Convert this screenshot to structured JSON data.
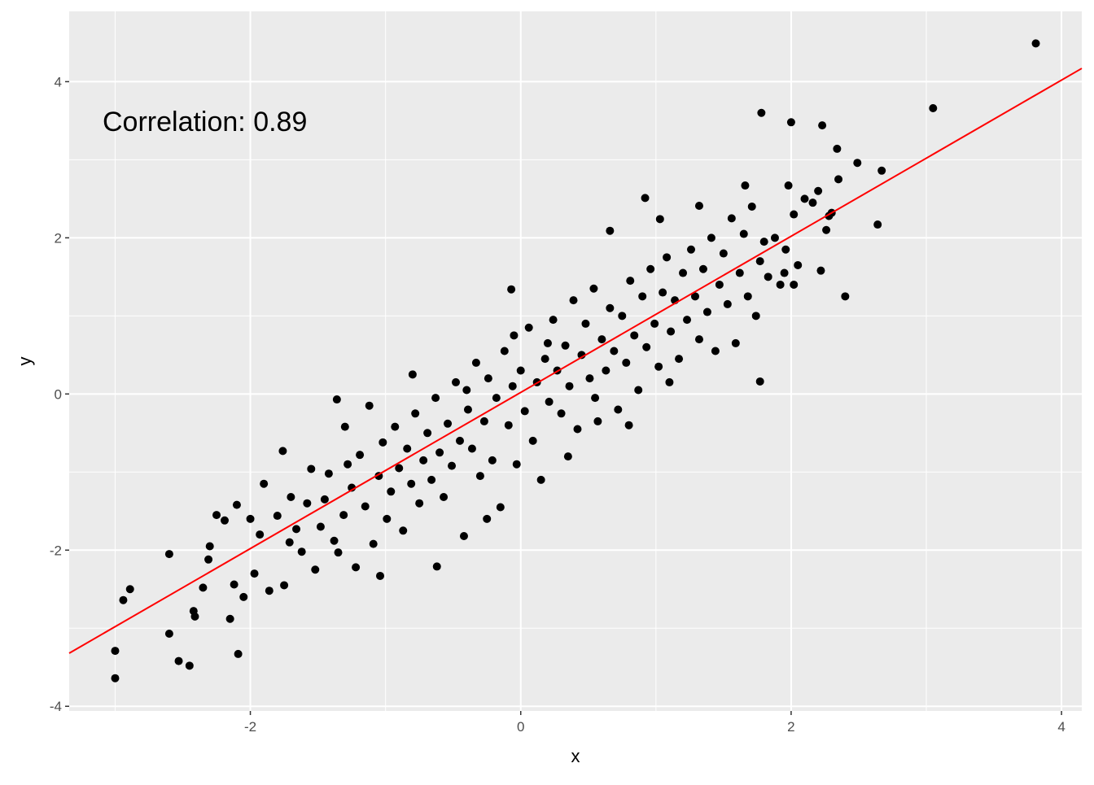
{
  "chart_data": {
    "type": "scatter",
    "title": "",
    "xlabel": "x",
    "ylabel": "y",
    "xlim": [
      -3.34,
      4.15
    ],
    "ylim": [
      -4.06,
      4.9
    ],
    "x_ticks": [
      -2,
      0,
      2,
      4
    ],
    "y_ticks": [
      -4,
      -2,
      0,
      2,
      4
    ],
    "x_tick_labels": [
      "-2",
      "0",
      "2",
      "4"
    ],
    "y_tick_labels": [
      "-4",
      "-2",
      "0",
      "2",
      "4"
    ],
    "grid": true,
    "annotation": "Correlation: 0.89",
    "regression_line": {
      "slope": 1.0,
      "intercept": 0.02,
      "color": "#ff0000"
    },
    "point_color": "#000000",
    "panel_background": "#ebebeb",
    "points": [
      [
        3.81,
        4.49
      ],
      [
        3.05,
        3.66
      ],
      [
        1.78,
        3.6
      ],
      [
        2.0,
        3.48
      ],
      [
        2.23,
        3.44
      ],
      [
        2.34,
        3.14
      ],
      [
        2.49,
        2.96
      ],
      [
        2.67,
        2.86
      ],
      [
        2.64,
        2.17
      ],
      [
        2.4,
        1.25
      ],
      [
        1.77,
        0.16
      ],
      [
        -3.0,
        -3.64
      ],
      [
        -3.0,
        -3.29
      ],
      [
        -2.94,
        -2.64
      ],
      [
        -2.89,
        -2.5
      ],
      [
        -2.6,
        -2.05
      ],
      [
        -2.6,
        -3.07
      ],
      [
        -2.53,
        -3.42
      ],
      [
        -2.45,
        -3.48
      ],
      [
        -2.09,
        -3.33
      ],
      [
        -0.62,
        -2.21
      ],
      [
        -1.04,
        -2.33
      ],
      [
        -1.36,
        -0.07
      ],
      [
        -1.76,
        -0.73
      ],
      [
        -0.07,
        1.34
      ],
      [
        0.66,
        2.09
      ],
      [
        0.92,
        2.51
      ],
      [
        1.03,
        2.24
      ],
      [
        1.32,
        2.41
      ],
      [
        1.66,
        2.67
      ],
      [
        1.98,
        2.67
      ],
      [
        -2.42,
        -2.78
      ],
      [
        -2.41,
        -2.85
      ],
      [
        -2.35,
        -2.48
      ],
      [
        -2.31,
        -2.12
      ],
      [
        -2.25,
        -1.55
      ],
      [
        -2.19,
        -1.62
      ],
      [
        -2.12,
        -2.44
      ],
      [
        -2.1,
        -1.42
      ],
      [
        -2.05,
        -2.6
      ],
      [
        -2.0,
        -1.6
      ],
      [
        -1.97,
        -2.3
      ],
      [
        -1.93,
        -1.8
      ],
      [
        -1.9,
        -1.15
      ],
      [
        -1.86,
        -2.52
      ],
      [
        -1.8,
        -1.56
      ],
      [
        -1.75,
        -2.45
      ],
      [
        -1.71,
        -1.9
      ],
      [
        -1.66,
        -1.73
      ],
      [
        -1.62,
        -2.02
      ],
      [
        -1.58,
        -1.4
      ],
      [
        -1.55,
        -0.96
      ],
      [
        -1.52,
        -2.25
      ],
      [
        -1.48,
        -1.7
      ],
      [
        -1.45,
        -1.35
      ],
      [
        -1.42,
        -1.02
      ],
      [
        -1.38,
        -1.88
      ],
      [
        -1.35,
        -2.03
      ],
      [
        -1.31,
        -1.55
      ],
      [
        -1.28,
        -0.9
      ],
      [
        -1.25,
        -1.2
      ],
      [
        -1.22,
        -2.22
      ],
      [
        -1.19,
        -0.78
      ],
      [
        -1.15,
        -1.44
      ],
      [
        -1.12,
        -0.15
      ],
      [
        -1.09,
        -1.92
      ],
      [
        -1.05,
        -1.05
      ],
      [
        -1.02,
        -0.62
      ],
      [
        -0.99,
        -1.6
      ],
      [
        -0.96,
        -1.25
      ],
      [
        -0.93,
        -0.42
      ],
      [
        -0.9,
        -0.95
      ],
      [
        -0.87,
        -1.75
      ],
      [
        -0.84,
        -0.7
      ],
      [
        -0.81,
        -1.15
      ],
      [
        -0.78,
        -0.25
      ],
      [
        -0.75,
        -1.4
      ],
      [
        -0.72,
        -0.85
      ],
      [
        -0.69,
        -0.5
      ],
      [
        -0.66,
        -1.1
      ],
      [
        -0.63,
        -0.05
      ],
      [
        -0.6,
        -0.75
      ],
      [
        -0.57,
        -1.32
      ],
      [
        -0.54,
        -0.38
      ],
      [
        -0.51,
        -0.92
      ],
      [
        -0.48,
        0.15
      ],
      [
        -0.45,
        -0.6
      ],
      [
        -0.42,
        -1.82
      ],
      [
        -0.39,
        -0.2
      ],
      [
        -0.36,
        -0.7
      ],
      [
        -0.33,
        0.4
      ],
      [
        -0.3,
        -1.05
      ],
      [
        -0.27,
        -0.35
      ],
      [
        -0.24,
        0.2
      ],
      [
        -0.21,
        -0.85
      ],
      [
        -0.18,
        -0.05
      ],
      [
        -0.15,
        -1.45
      ],
      [
        -0.12,
        0.55
      ],
      [
        -0.09,
        -0.4
      ],
      [
        -0.06,
        0.1
      ],
      [
        -0.03,
        -0.9
      ],
      [
        0.0,
        0.3
      ],
      [
        0.03,
        -0.22
      ],
      [
        0.06,
        0.85
      ],
      [
        0.09,
        -0.6
      ],
      [
        0.12,
        0.15
      ],
      [
        0.15,
        -1.1
      ],
      [
        0.18,
        0.45
      ],
      [
        0.21,
        -0.1
      ],
      [
        0.24,
        0.95
      ],
      [
        0.27,
        0.3
      ],
      [
        0.3,
        -0.25
      ],
      [
        0.33,
        0.62
      ],
      [
        0.36,
        0.1
      ],
      [
        0.39,
        1.2
      ],
      [
        0.42,
        -0.45
      ],
      [
        0.45,
        0.5
      ],
      [
        0.48,
        0.9
      ],
      [
        0.51,
        0.2
      ],
      [
        0.54,
        1.35
      ],
      [
        0.57,
        -0.35
      ],
      [
        0.6,
        0.7
      ],
      [
        0.63,
        0.3
      ],
      [
        0.66,
        1.1
      ],
      [
        0.69,
        0.55
      ],
      [
        0.72,
        -0.2
      ],
      [
        0.75,
        1.0
      ],
      [
        0.78,
        0.4
      ],
      [
        0.81,
        1.45
      ],
      [
        0.84,
        0.75
      ],
      [
        0.87,
        0.05
      ],
      [
        0.9,
        1.25
      ],
      [
        0.93,
        0.6
      ],
      [
        0.96,
        1.6
      ],
      [
        0.99,
        0.9
      ],
      [
        1.02,
        0.35
      ],
      [
        1.05,
        1.3
      ],
      [
        1.08,
        1.75
      ],
      [
        1.11,
        0.8
      ],
      [
        1.14,
        1.2
      ],
      [
        1.17,
        0.45
      ],
      [
        1.2,
        1.55
      ],
      [
        1.23,
        0.95
      ],
      [
        1.26,
        1.85
      ],
      [
        1.29,
        1.25
      ],
      [
        1.32,
        0.7
      ],
      [
        1.35,
        1.6
      ],
      [
        1.38,
        1.05
      ],
      [
        1.41,
        2.0
      ],
      [
        1.44,
        0.55
      ],
      [
        1.47,
        1.4
      ],
      [
        1.5,
        1.8
      ],
      [
        1.53,
        1.15
      ],
      [
        1.56,
        2.25
      ],
      [
        1.59,
        0.65
      ],
      [
        1.62,
        1.55
      ],
      [
        1.65,
        2.05
      ],
      [
        1.68,
        1.25
      ],
      [
        1.71,
        2.4
      ],
      [
        1.74,
        1.0
      ],
      [
        1.77,
        1.7
      ],
      [
        1.8,
        1.95
      ],
      [
        1.83,
        1.5
      ],
      [
        1.88,
        2.0
      ],
      [
        1.92,
        1.4
      ],
      [
        1.96,
        1.85
      ],
      [
        2.02,
        2.3
      ],
      [
        2.05,
        1.65
      ],
      [
        2.1,
        2.5
      ],
      [
        2.16,
        2.45
      ],
      [
        2.2,
        2.6
      ],
      [
        2.26,
        2.1
      ],
      [
        2.28,
        2.28
      ],
      [
        2.3,
        2.32
      ],
      [
        2.35,
        2.75
      ],
      [
        2.22,
        1.58
      ],
      [
        2.02,
        1.4
      ],
      [
        1.95,
        1.55
      ],
      [
        0.35,
        -0.8
      ],
      [
        -0.25,
        -1.6
      ],
      [
        -0.8,
        0.25
      ],
      [
        -1.3,
        -0.42
      ],
      [
        -1.7,
        -1.32
      ],
      [
        -2.3,
        -1.95
      ],
      [
        -2.15,
        -2.88
      ],
      [
        0.8,
        -0.4
      ],
      [
        1.1,
        0.15
      ],
      [
        0.55,
        -0.05
      ],
      [
        -0.4,
        0.05
      ],
      [
        -0.05,
        0.75
      ],
      [
        0.2,
        0.65
      ]
    ]
  }
}
